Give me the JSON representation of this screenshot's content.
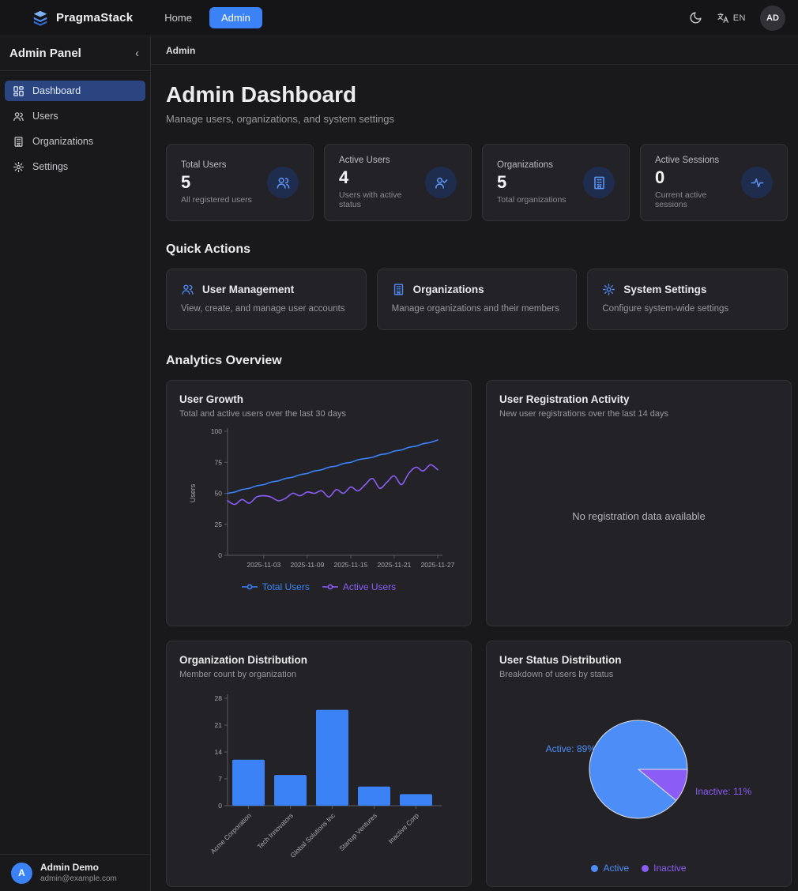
{
  "navbar": {
    "brand": "PragmaStack",
    "links": [
      {
        "label": "Home",
        "active": false
      },
      {
        "label": "Admin",
        "active": true
      }
    ],
    "language": "EN",
    "avatar_initials": "AD"
  },
  "sidebar": {
    "title": "Admin Panel",
    "collapse_glyph": "‹",
    "items": [
      {
        "label": "Dashboard",
        "active": true
      },
      {
        "label": "Users",
        "active": false
      },
      {
        "label": "Organizations",
        "active": false
      },
      {
        "label": "Settings",
        "active": false
      }
    ],
    "user": {
      "initial": "A",
      "name": "Admin Demo",
      "email": "admin@example.com"
    }
  },
  "breadcrumb": "Admin",
  "header": {
    "title": "Admin Dashboard",
    "subtitle": "Manage users, organizations, and system settings"
  },
  "stats": [
    {
      "label": "Total Users",
      "value": "5",
      "description": "All registered users",
      "icon": "users-icon"
    },
    {
      "label": "Active Users",
      "value": "4",
      "description": "Users with active status",
      "icon": "user-check-icon"
    },
    {
      "label": "Organizations",
      "value": "5",
      "description": "Total organizations",
      "icon": "building-icon"
    },
    {
      "label": "Active Sessions",
      "value": "0",
      "description": "Current active sessions",
      "icon": "activity-icon"
    }
  ],
  "quick_actions": {
    "title": "Quick Actions",
    "cards": [
      {
        "title": "User Management",
        "description": "View, create, and manage user accounts",
        "icon": "users-icon"
      },
      {
        "title": "Organizations",
        "description": "Manage organizations and their members",
        "icon": "building-icon"
      },
      {
        "title": "System Settings",
        "description": "Configure system-wide settings",
        "icon": "gear-icon"
      }
    ]
  },
  "analytics_title": "Analytics Overview",
  "colors": {
    "accent": "#3b82f6",
    "purple": "#8b5cf6",
    "pie_active": "#4d8df7",
    "pie_inactive": "#8b5cf6"
  },
  "chart_data": [
    {
      "type": "line",
      "title": "User Growth",
      "subtitle": "Total and active users over the last 30 days",
      "ylabel": "Users",
      "ylim": [
        0,
        100
      ],
      "yticks": [
        0,
        25,
        50,
        75,
        100
      ],
      "xticks": [
        "2025-11-03",
        "2025-11-09",
        "2025-11-15",
        "2025-11-21",
        "2025-11-27"
      ],
      "xtick_indices": [
        5,
        11,
        17,
        23,
        29
      ],
      "grid": false,
      "legend_position": "bottom",
      "series": [
        {
          "name": "Total Users",
          "color": "#3b82f6",
          "values": [
            50,
            51,
            53,
            54,
            56,
            57,
            59,
            60,
            62,
            63,
            65,
            66,
            68,
            69,
            71,
            72,
            74,
            75,
            77,
            78,
            79,
            81,
            82,
            84,
            85,
            87,
            88,
            90,
            91,
            93
          ]
        },
        {
          "name": "Active Users",
          "color": "#8b5cf6",
          "values": [
            44,
            41,
            45,
            42,
            47,
            48,
            47,
            44,
            46,
            50,
            48,
            51,
            50,
            52,
            47,
            53,
            50,
            55,
            52,
            57,
            62,
            54,
            59,
            64,
            57,
            66,
            71,
            68,
            73,
            69
          ]
        }
      ]
    },
    {
      "type": "empty",
      "title": "User Registration Activity",
      "subtitle": "New user registrations over the last 14 days",
      "empty_message": "No registration data available"
    },
    {
      "type": "bar",
      "title": "Organization Distribution",
      "subtitle": "Member count by organization",
      "categories": [
        "Acme Corporation",
        "Tech Innovators",
        "Global Solutions Inc",
        "Startup Ventures",
        "Inactive Corp"
      ],
      "values": [
        12,
        8,
        25,
        5,
        3
      ],
      "ylim": [
        0,
        28
      ],
      "yticks": [
        0,
        7,
        14,
        21,
        28
      ],
      "bar_color": "#3b82f6",
      "grid": false
    },
    {
      "type": "pie",
      "title": "User Status Distribution",
      "subtitle": "Breakdown of users by status",
      "slices": [
        {
          "label": "Active",
          "pct": 89,
          "color": "#4d8df7",
          "callout": "Active: 89%"
        },
        {
          "label": "Inactive",
          "pct": 11,
          "color": "#8b5cf6",
          "callout": "Inactive: 11%"
        }
      ],
      "legend": [
        "Active",
        "Inactive"
      ],
      "legend_position": "bottom"
    }
  ]
}
